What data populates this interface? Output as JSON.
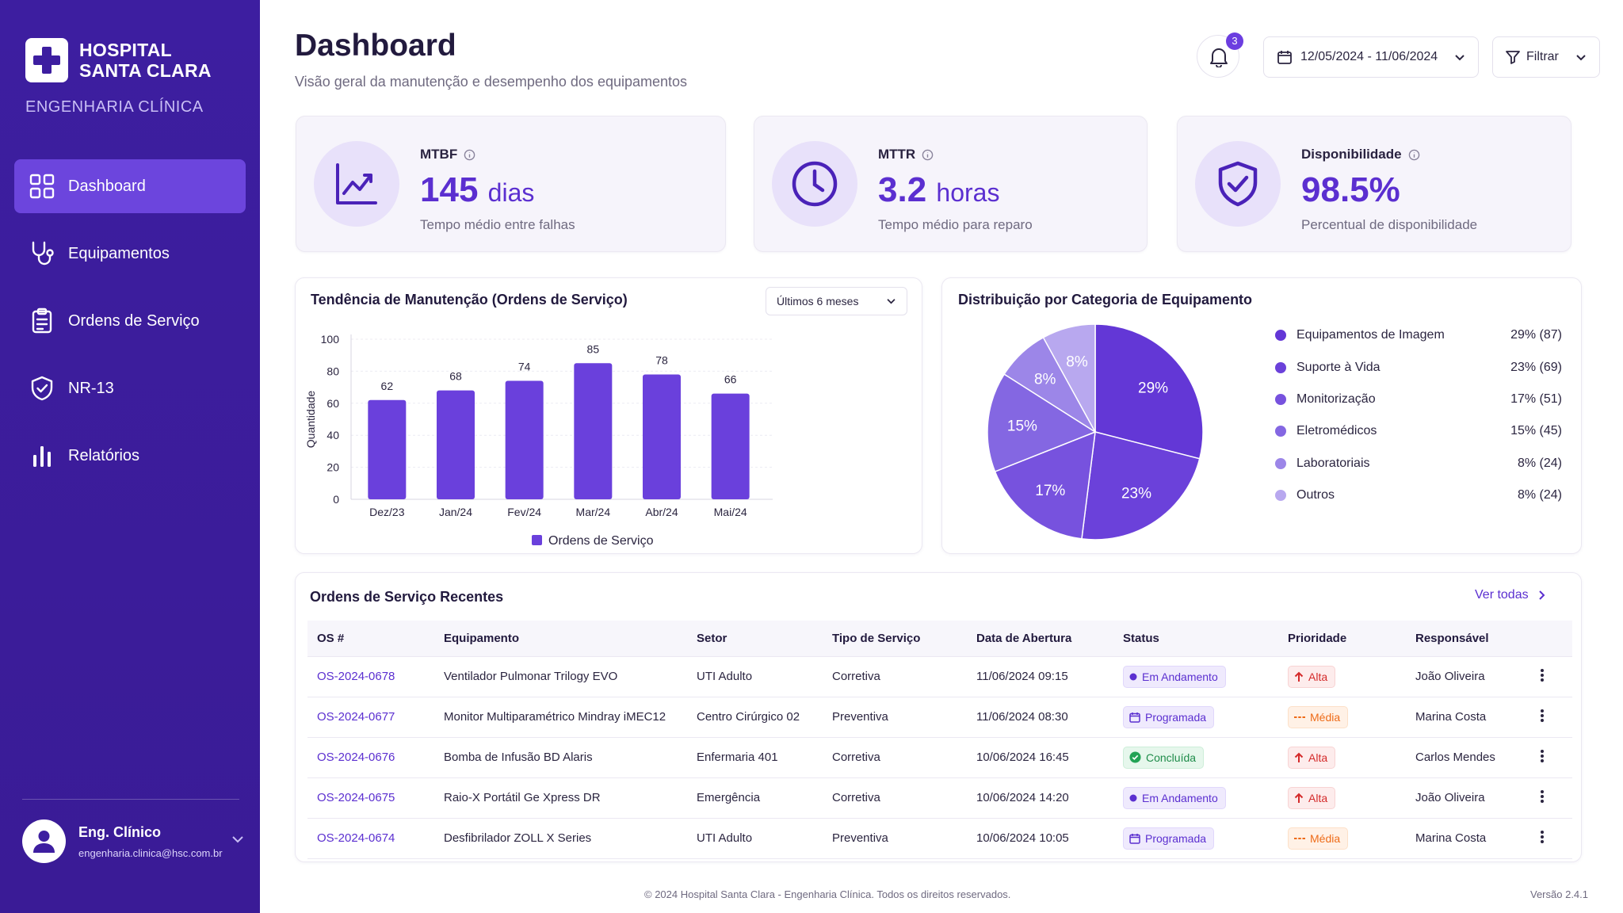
{
  "sidebar": {
    "logo_line1": "HOSPITAL",
    "logo_line2": "SANTA CLARA",
    "subtitle": "ENGENHARIA CLÍNICA",
    "items": [
      {
        "label": "Dashboard",
        "icon": "grid-icon",
        "active": true
      },
      {
        "label": "Equipamentos",
        "icon": "stethoscope-icon",
        "active": false
      },
      {
        "label": "Ordens de Serviço",
        "icon": "clipboard-icon",
        "active": false
      },
      {
        "label": "NR-13",
        "icon": "shield-check-icon",
        "active": false
      },
      {
        "label": "Relatórios",
        "icon": "bar-chart-icon",
        "active": false
      }
    ],
    "user": {
      "name": "Eng. Clínico",
      "email": "engenharia.clinica@hsc.com.br"
    }
  },
  "header": {
    "title": "Dashboard",
    "subtitle": "Visão geral da manutenção e desempenho dos equipamentos",
    "notifications": "3",
    "date_range": "12/05/2024 - 11/06/2024",
    "filter_label": "Filtrar"
  },
  "kpis": [
    {
      "label": "MTBF",
      "value": "145",
      "unit": "dias",
      "desc": "Tempo médio entre falhas",
      "icon": "trend-chart-icon"
    },
    {
      "label": "MTTR",
      "value": "3.2",
      "unit": "horas",
      "desc": "Tempo médio para reparo",
      "icon": "clock-icon"
    },
    {
      "label": "Disponibilidade",
      "value": "98.5%",
      "unit": "",
      "desc": "Percentual de disponibilidade",
      "icon": "shield-check-icon"
    }
  ],
  "trend": {
    "title": "Tendência de Manutenção (Ordens de Serviço)",
    "range": "Últimos 6 meses"
  },
  "distribution": {
    "title": "Distribuição por Categoria de Equipamento"
  },
  "chart_data": [
    {
      "type": "bar",
      "title": "Tendência de Manutenção (Ordens de Serviço)",
      "categories": [
        "Dez/23",
        "Jan/24",
        "Fev/24",
        "Mar/24",
        "Abr/24",
        "Mai/24"
      ],
      "series": [
        {
          "name": "Ordens de Serviço",
          "values": [
            62,
            68,
            74,
            85,
            78,
            66
          ]
        }
      ],
      "ylabel": "Quantidade",
      "xlabel": "",
      "ylim": [
        0,
        100
      ],
      "yticks": [
        0,
        20,
        40,
        60,
        80,
        100
      ],
      "grid": true,
      "legend": "bottom",
      "color": "#6a40dc"
    },
    {
      "type": "pie",
      "title": "Distribuição por Categoria de Equipamento",
      "slices": [
        {
          "label": "Equipamentos de Imagem",
          "percent": 29,
          "count": 87,
          "display": "29% (87)",
          "color": "#6337d6"
        },
        {
          "label": "Suporte à Vida",
          "percent": 23,
          "count": 69,
          "display": "23% (69)",
          "color": "#6b41da"
        },
        {
          "label": "Monitorização",
          "percent": 17,
          "count": 51,
          "display": "17% (51)",
          "color": "#7752de"
        },
        {
          "label": "Eletromédicos",
          "percent": 15,
          "count": 45,
          "display": "15% (45)",
          "color": "#8467e2"
        },
        {
          "label": "Laboratoriais",
          "percent": 8,
          "count": 24,
          "display": "8% (24)",
          "color": "#9c86e8"
        },
        {
          "label": "Outros",
          "percent": 8,
          "count": 24,
          "display": "8% (24)",
          "color": "#b8a8ef"
        }
      ],
      "legend": "right"
    }
  ],
  "orders": {
    "title": "Ordens de Serviço Recentes",
    "view_all": "Ver todas",
    "columns": [
      "OS #",
      "Equipamento",
      "Setor",
      "Tipo de Serviço",
      "Data de Abertura",
      "Status",
      "Prioridade",
      "Responsável"
    ],
    "rows": [
      {
        "os": "OS-2024-0678",
        "equip": "Ventilador Pulmonar Trilogy EVO",
        "setor": "UTI Adulto",
        "tipo": "Corretiva",
        "data": "11/06/2024 09:15",
        "status": "Em Andamento",
        "prioridade": "Alta",
        "resp": "João Oliveira"
      },
      {
        "os": "OS-2024-0677",
        "equip": "Monitor Multiparamétrico Mindray iMEC12",
        "setor": "Centro Cirúrgico 02",
        "tipo": "Preventiva",
        "data": "11/06/2024 08:30",
        "status": "Programada",
        "prioridade": "Média",
        "resp": "Marina Costa"
      },
      {
        "os": "OS-2024-0676",
        "equip": "Bomba de Infusão BD Alaris",
        "setor": "Enfermaria 401",
        "tipo": "Corretiva",
        "data": "10/06/2024 16:45",
        "status": "Concluída",
        "prioridade": "Alta",
        "resp": "Carlos Mendes"
      },
      {
        "os": "OS-2024-0675",
        "equip": "Raio-X Portátil Ge Xpress DR",
        "setor": "Emergência",
        "tipo": "Corretiva",
        "data": "10/06/2024 14:20",
        "status": "Em Andamento",
        "prioridade": "Alta",
        "resp": "João Oliveira"
      },
      {
        "os": "OS-2024-0674",
        "equip": "Desfibrilador ZOLL X Series",
        "setor": "UTI Adulto",
        "tipo": "Preventiva",
        "data": "10/06/2024 10:05",
        "status": "Programada",
        "prioridade": "Média",
        "resp": "Marina Costa"
      }
    ]
  },
  "footer": {
    "copyright": "© 2024 Hospital Santa Clara - Engenharia Clínica. Todos os direitos reservados.",
    "version": "Versão 2.4.1"
  }
}
